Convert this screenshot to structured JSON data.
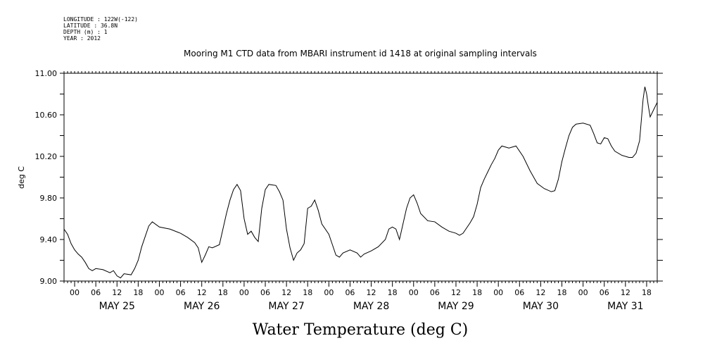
{
  "header": {
    "longitude": "LONGITUDE : 122W(-122)",
    "latitude": "LATITUDE : 36.8N",
    "depth": "DEPTH (m) : 1",
    "year": "YEAR : 2012"
  },
  "chart_data": {
    "type": "line",
    "title": "Mooring M1 CTD data from MBARI instrument id 1418 at original sampling intervals",
    "xlabel": "Water Temperature (deg C)",
    "ylabel": "deg C",
    "ylim": [
      9.0,
      11.0
    ],
    "y_ticks": [
      "9.00",
      "9.40",
      "9.80",
      "10.20",
      "10.60",
      "11.00"
    ],
    "x_range_hours_labels": "2012-05-24 21:00 to 2012-05-31 21:00",
    "hour_tick_labels": [
      "00",
      "06",
      "12",
      "18"
    ],
    "day_labels": [
      "MAY 25",
      "MAY 26",
      "MAY 27",
      "MAY 28",
      "MAY 29",
      "MAY 30",
      "MAY 31"
    ],
    "grid": false,
    "series": [
      {
        "values": [
          [
            "05-24 21:00",
            9.5
          ],
          [
            "05-24 22:00",
            9.45
          ],
          [
            "05-24 23:00",
            9.36
          ],
          [
            "05-25 00:00",
            9.3
          ],
          [
            "05-25 01:00",
            9.26
          ],
          [
            "05-25 02:00",
            9.23
          ],
          [
            "05-25 03:00",
            9.18
          ],
          [
            "05-25 04:00",
            9.12
          ],
          [
            "05-25 05:00",
            9.1
          ],
          [
            "05-25 06:00",
            9.12
          ],
          [
            "05-25 08:00",
            9.11
          ],
          [
            "05-25 10:00",
            9.08
          ],
          [
            "05-25 11:00",
            9.1
          ],
          [
            "05-25 12:00",
            9.05
          ],
          [
            "05-25 13:00",
            9.03
          ],
          [
            "05-25 14:00",
            9.07
          ],
          [
            "05-25 16:00",
            9.06
          ],
          [
            "05-25 17:00",
            9.12
          ],
          [
            "05-25 18:00",
            9.2
          ],
          [
            "05-25 19:00",
            9.33
          ],
          [
            "05-25 20:00",
            9.43
          ],
          [
            "05-25 21:00",
            9.53
          ],
          [
            "05-25 22:00",
            9.57
          ],
          [
            "05-26 00:00",
            9.52
          ],
          [
            "05-26 03:00",
            9.5
          ],
          [
            "05-26 06:00",
            9.46
          ],
          [
            "05-26 08:00",
            9.42
          ],
          [
            "05-26 10:00",
            9.37
          ],
          [
            "05-26 11:00",
            9.32
          ],
          [
            "05-26 12:00",
            9.18
          ],
          [
            "05-26 13:00",
            9.25
          ],
          [
            "05-26 14:00",
            9.33
          ],
          [
            "05-26 15:00",
            9.32
          ],
          [
            "05-26 17:00",
            9.35
          ],
          [
            "05-26 18:00",
            9.5
          ],
          [
            "05-26 19:00",
            9.65
          ],
          [
            "05-26 20:00",
            9.78
          ],
          [
            "05-26 21:00",
            9.88
          ],
          [
            "05-26 22:00",
            9.93
          ],
          [
            "05-26 23:00",
            9.87
          ],
          [
            "05-27 00:00",
            9.6
          ],
          [
            "05-27 01:00",
            9.45
          ],
          [
            "05-27 02:00",
            9.48
          ],
          [
            "05-27 03:00",
            9.42
          ],
          [
            "05-27 04:00",
            9.38
          ],
          [
            "05-27 05:00",
            9.7
          ],
          [
            "05-27 06:00",
            9.88
          ],
          [
            "05-27 07:00",
            9.93
          ],
          [
            "05-27 09:00",
            9.92
          ],
          [
            "05-27 10:00",
            9.86
          ],
          [
            "05-27 11:00",
            9.78
          ],
          [
            "05-27 12:00",
            9.5
          ],
          [
            "05-27 13:00",
            9.32
          ],
          [
            "05-27 14:00",
            9.2
          ],
          [
            "05-27 15:00",
            9.27
          ],
          [
            "05-27 16:00",
            9.3
          ],
          [
            "05-27 17:00",
            9.36
          ],
          [
            "05-27 18:00",
            9.7
          ],
          [
            "05-27 19:00",
            9.72
          ],
          [
            "05-27 20:00",
            9.78
          ],
          [
            "05-27 21:00",
            9.68
          ],
          [
            "05-27 22:00",
            9.55
          ],
          [
            "05-28 00:00",
            9.45
          ],
          [
            "05-28 01:00",
            9.35
          ],
          [
            "05-28 02:00",
            9.25
          ],
          [
            "05-28 03:00",
            9.23
          ],
          [
            "05-28 04:00",
            9.27
          ],
          [
            "05-28 06:00",
            9.3
          ],
          [
            "05-28 08:00",
            9.27
          ],
          [
            "05-28 09:00",
            9.23
          ],
          [
            "05-28 10:00",
            9.26
          ],
          [
            "05-28 12:00",
            9.29
          ],
          [
            "05-28 14:00",
            9.33
          ],
          [
            "05-28 16:00",
            9.4
          ],
          [
            "05-28 17:00",
            9.5
          ],
          [
            "05-28 18:00",
            9.52
          ],
          [
            "05-28 19:00",
            9.5
          ],
          [
            "05-28 20:00",
            9.4
          ],
          [
            "05-28 21:00",
            9.55
          ],
          [
            "05-28 22:00",
            9.7
          ],
          [
            "05-28 23:00",
            9.8
          ],
          [
            "05-29 00:00",
            9.83
          ],
          [
            "05-29 01:00",
            9.75
          ],
          [
            "05-29 02:00",
            9.65
          ],
          [
            "05-29 04:00",
            9.58
          ],
          [
            "05-29 06:00",
            9.57
          ],
          [
            "05-29 08:00",
            9.52
          ],
          [
            "05-29 10:00",
            9.48
          ],
          [
            "05-29 12:00",
            9.46
          ],
          [
            "05-29 13:00",
            9.44
          ],
          [
            "05-29 14:00",
            9.46
          ],
          [
            "05-29 16:00",
            9.56
          ],
          [
            "05-29 17:00",
            9.62
          ],
          [
            "05-29 18:00",
            9.74
          ],
          [
            "05-29 19:00",
            9.9
          ],
          [
            "05-29 20:00",
            9.98
          ],
          [
            "05-29 21:00",
            10.05
          ],
          [
            "05-29 22:00",
            10.12
          ],
          [
            "05-29 23:00",
            10.18
          ],
          [
            "05-30 00:00",
            10.26
          ],
          [
            "05-30 01:00",
            10.3
          ],
          [
            "05-30 03:00",
            10.28
          ],
          [
            "05-30 05:00",
            10.3
          ],
          [
            "05-30 07:00",
            10.2
          ],
          [
            "05-30 09:00",
            10.06
          ],
          [
            "05-30 11:00",
            9.94
          ],
          [
            "05-30 13:00",
            9.89
          ],
          [
            "05-30 15:00",
            9.86
          ],
          [
            "05-30 16:00",
            9.87
          ],
          [
            "05-30 17:00",
            9.98
          ],
          [
            "05-30 18:00",
            10.15
          ],
          [
            "05-30 19:00",
            10.28
          ],
          [
            "05-30 20:00",
            10.4
          ],
          [
            "05-30 21:00",
            10.48
          ],
          [
            "05-30 22:00",
            10.51
          ],
          [
            "05-31 00:00",
            10.52
          ],
          [
            "05-31 02:00",
            10.5
          ],
          [
            "05-31 03:00",
            10.42
          ],
          [
            "05-31 04:00",
            10.33
          ],
          [
            "05-31 05:00",
            10.32
          ],
          [
            "05-31 06:00",
            10.38
          ],
          [
            "05-31 07:00",
            10.37
          ],
          [
            "05-31 08:00",
            10.3
          ],
          [
            "05-31 09:00",
            10.25
          ],
          [
            "05-31 11:00",
            10.21
          ],
          [
            "05-31 13:00",
            10.19
          ],
          [
            "05-31 14:00",
            10.19
          ],
          [
            "05-31 15:00",
            10.23
          ],
          [
            "05-31 16:00",
            10.35
          ],
          [
            "05-31 17:00",
            10.75
          ],
          [
            "05-31 17:30",
            10.87
          ],
          [
            "05-31 18:00",
            10.8
          ],
          [
            "05-31 18:30",
            10.68
          ],
          [
            "05-31 19:00",
            10.58
          ],
          [
            "05-31 20:00",
            10.65
          ],
          [
            "05-31 21:00",
            10.72
          ]
        ]
      }
    ]
  }
}
